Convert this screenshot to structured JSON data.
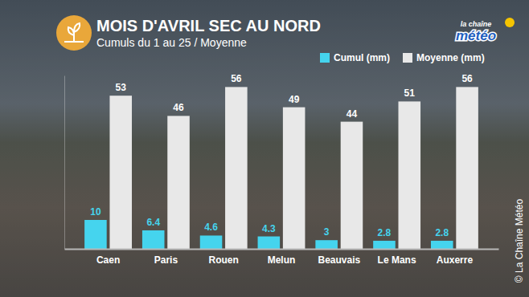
{
  "chart_data": {
    "type": "bar",
    "title": "MOIS D'AVRIL SEC AU NORD",
    "subtitle": "Cumuls du 1 au 25 / Moyenne",
    "annotations": [
      "la chaîne",
      "météo",
      "© La Chaîne Météo"
    ],
    "categories": [
      "Caen",
      "Paris",
      "Rouen",
      "Melun",
      "Beauvais",
      "Le Mans",
      "Auxerre"
    ],
    "series": [
      {
        "name": "Cumul (mm)",
        "color": "#45d4ee",
        "values": [
          10,
          6.4,
          4.6,
          4.3,
          3,
          2.8,
          2.8
        ]
      },
      {
        "name": "Moyenne (mm)",
        "color": "#e8e8e8",
        "values": [
          53,
          46,
          56,
          49,
          44,
          51,
          56
        ]
      }
    ],
    "ylim": [
      0,
      60
    ],
    "data_labels": true,
    "tick_labels": "x",
    "legend": "top-right"
  }
}
